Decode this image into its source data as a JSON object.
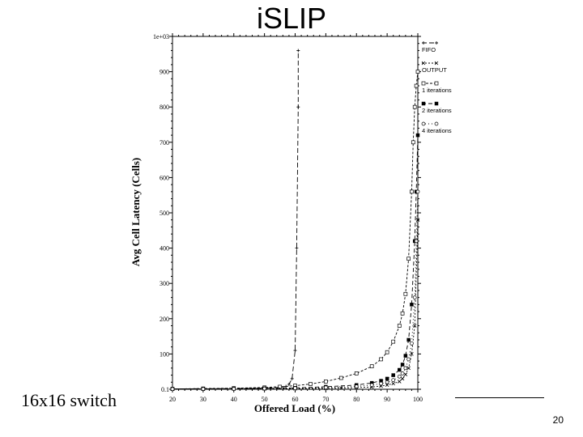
{
  "slide": {
    "title": "iSLIP",
    "caption": "16x16 switch",
    "page_number": "20"
  },
  "chart_data": {
    "type": "line",
    "title": "",
    "xlabel": "Offered Load (%)",
    "ylabel": "Avg Cell Latency (Cells)",
    "xlim": [
      20,
      100
    ],
    "ylim": [
      0,
      1000
    ],
    "x_ticks": [
      "20",
      "30",
      "40",
      "50",
      "60",
      "70",
      "80",
      "90",
      "100"
    ],
    "y_ticks": [
      "0.1",
      "100",
      "200",
      "300",
      "400",
      "500",
      "600",
      "700",
      "800",
      "900",
      "1e+03"
    ],
    "grid": false,
    "legend_position": "right",
    "series": [
      {
        "name": "FIFO",
        "marker": "plus",
        "dash": "6,3",
        "x": [
          20,
          30,
          40,
          50,
          55,
          57,
          58,
          59,
          60,
          60.5,
          61,
          61
        ],
        "y": [
          1,
          1.5,
          2,
          3,
          5,
          8,
          14,
          30,
          110,
          400,
          800,
          960
        ]
      },
      {
        "name": "OUTPUT",
        "marker": "x",
        "dash": "2,2",
        "x": [
          20,
          30,
          40,
          50,
          60,
          70,
          75,
          80,
          85,
          88,
          90,
          92,
          94,
          95,
          96,
          97,
          98,
          99,
          100
        ],
        "y": [
          0.6,
          0.7,
          0.8,
          1,
          1.5,
          2.5,
          3.5,
          4.5,
          6.5,
          9,
          12,
          16,
          22,
          30,
          42,
          60,
          100,
          180,
          480
        ]
      },
      {
        "name": "1 iterations",
        "marker": "square-open",
        "dash": "3,2",
        "x": [
          20,
          30,
          40,
          50,
          55,
          60,
          65,
          70,
          75,
          80,
          85,
          88,
          90,
          92,
          94,
          95,
          96,
          97,
          98,
          98.5,
          99,
          99.5,
          100
        ],
        "y": [
          1,
          2,
          3,
          5,
          7,
          10,
          15,
          22,
          32,
          45,
          65,
          85,
          105,
          135,
          180,
          215,
          270,
          370,
          560,
          700,
          800,
          860,
          900
        ]
      },
      {
        "name": "2 iterations",
        "marker": "square-filled",
        "dash": "5,3",
        "x": [
          20,
          30,
          40,
          50,
          60,
          70,
          80,
          85,
          88,
          90,
          92,
          94,
          95,
          96,
          97,
          98,
          99,
          99.5,
          100
        ],
        "y": [
          0.8,
          1,
          1.5,
          2.5,
          4,
          7,
          12,
          18,
          24,
          30,
          40,
          55,
          70,
          95,
          140,
          240,
          420,
          560,
          720
        ]
      },
      {
        "name": "4 iterations",
        "marker": "circle-open",
        "dash": "1,3",
        "x": [
          20,
          30,
          40,
          50,
          60,
          70,
          80,
          85,
          88,
          90,
          92,
          94,
          95,
          96,
          97,
          98,
          99,
          99.5,
          100
        ],
        "y": [
          0.6,
          0.8,
          1.2,
          2,
          3,
          5,
          8,
          12,
          16,
          20,
          26,
          36,
          45,
          60,
          85,
          130,
          260,
          420,
          560
        ]
      }
    ]
  }
}
